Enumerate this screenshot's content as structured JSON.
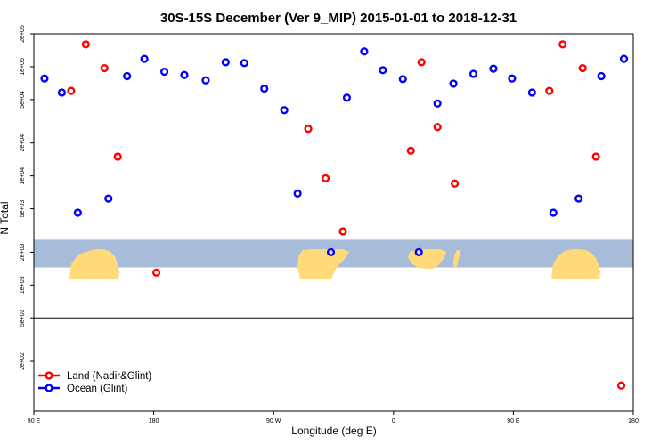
{
  "title": "30S-15S December (Ver 9_MIP)   2015-01-01 to 2018-12-31",
  "chart_data": {
    "type": "scatter",
    "title": "30S-15S December (Ver 9_MIP)   2015-01-01 to 2018-12-31",
    "xlabel": "Longitude (deg E)",
    "ylabel": "N Total",
    "x_ticks": [
      {
        "label": "90 E",
        "value": 0
      },
      {
        "label": "180",
        "value": 90
      },
      {
        "label": "90 W",
        "value": 180
      },
      {
        "label": "0",
        "value": 270
      },
      {
        "label": "90 E",
        "value": 360
      },
      {
        "label": "180",
        "value": 450
      }
    ],
    "xlim": [
      0,
      450
    ],
    "y_scale": "log",
    "ylim": [
      70,
      200000
    ],
    "y_ticks": [
      {
        "label": "2e+05",
        "value": 200000
      },
      {
        "label": "1e+05",
        "value": 100000
      },
      {
        "label": "5e+04",
        "value": 50000
      },
      {
        "label": "2e+04",
        "value": 20000
      },
      {
        "label": "1e+04",
        "value": 10000
      },
      {
        "label": "5e+03",
        "value": 5000
      },
      {
        "label": "2e+03",
        "value": 2000
      },
      {
        "label": "1e+03",
        "value": 1000
      },
      {
        "label": "5e+02",
        "value": 500
      },
      {
        "label": "2e+02",
        "value": 200
      }
    ],
    "panel_split_value": 500,
    "map_band": {
      "y_top": 2600,
      "y_bottom": 1450
    },
    "legend": {
      "position": "bottom-left"
    },
    "series": [
      {
        "name": "Land (Nadir&Glint)",
        "color": "#ff0000",
        "points": [
          {
            "x": 28,
            "y": 60000
          },
          {
            "x": 39,
            "y": 160000
          },
          {
            "x": 53,
            "y": 97000
          },
          {
            "x": 63,
            "y": 15000
          },
          {
            "x": 92,
            "y": 1300
          },
          {
            "x": 206,
            "y": 27000
          },
          {
            "x": 219,
            "y": 9500
          },
          {
            "x": 232,
            "y": 3100
          },
          {
            "x": 283,
            "y": 17000
          },
          {
            "x": 291,
            "y": 110000
          },
          {
            "x": 303,
            "y": 28000
          },
          {
            "x": 316,
            "y": 8500
          },
          {
            "x": 387,
            "y": 60000
          },
          {
            "x": 397,
            "y": 160000
          },
          {
            "x": 412,
            "y": 97000
          },
          {
            "x": 422,
            "y": 15000
          },
          {
            "x": 441,
            "y": 120
          }
        ]
      },
      {
        "name": "Ocean (Glint)",
        "color": "#0000ff",
        "points": [
          {
            "x": 8,
            "y": 78000
          },
          {
            "x": 21,
            "y": 58000
          },
          {
            "x": 33,
            "y": 4600
          },
          {
            "x": 56,
            "y": 6200
          },
          {
            "x": 70,
            "y": 82000
          },
          {
            "x": 83,
            "y": 118000
          },
          {
            "x": 98,
            "y": 90000
          },
          {
            "x": 113,
            "y": 84000
          },
          {
            "x": 129,
            "y": 75000
          },
          {
            "x": 144,
            "y": 110000
          },
          {
            "x": 158,
            "y": 108000
          },
          {
            "x": 173,
            "y": 63000
          },
          {
            "x": 188,
            "y": 40000
          },
          {
            "x": 198,
            "y": 6900
          },
          {
            "x": 223,
            "y": 2000
          },
          {
            "x": 235,
            "y": 52000
          },
          {
            "x": 248,
            "y": 138000
          },
          {
            "x": 262,
            "y": 93000
          },
          {
            "x": 277,
            "y": 77000
          },
          {
            "x": 289,
            "y": 2000
          },
          {
            "x": 303,
            "y": 46000
          },
          {
            "x": 315,
            "y": 70000
          },
          {
            "x": 330,
            "y": 86000
          },
          {
            "x": 345,
            "y": 96000
          },
          {
            "x": 359,
            "y": 78000
          },
          {
            "x": 374,
            "y": 58000
          },
          {
            "x": 390,
            "y": 4600
          },
          {
            "x": 409,
            "y": 6200
          },
          {
            "x": 426,
            "y": 82000
          },
          {
            "x": 443,
            "y": 118000
          }
        ]
      }
    ]
  }
}
